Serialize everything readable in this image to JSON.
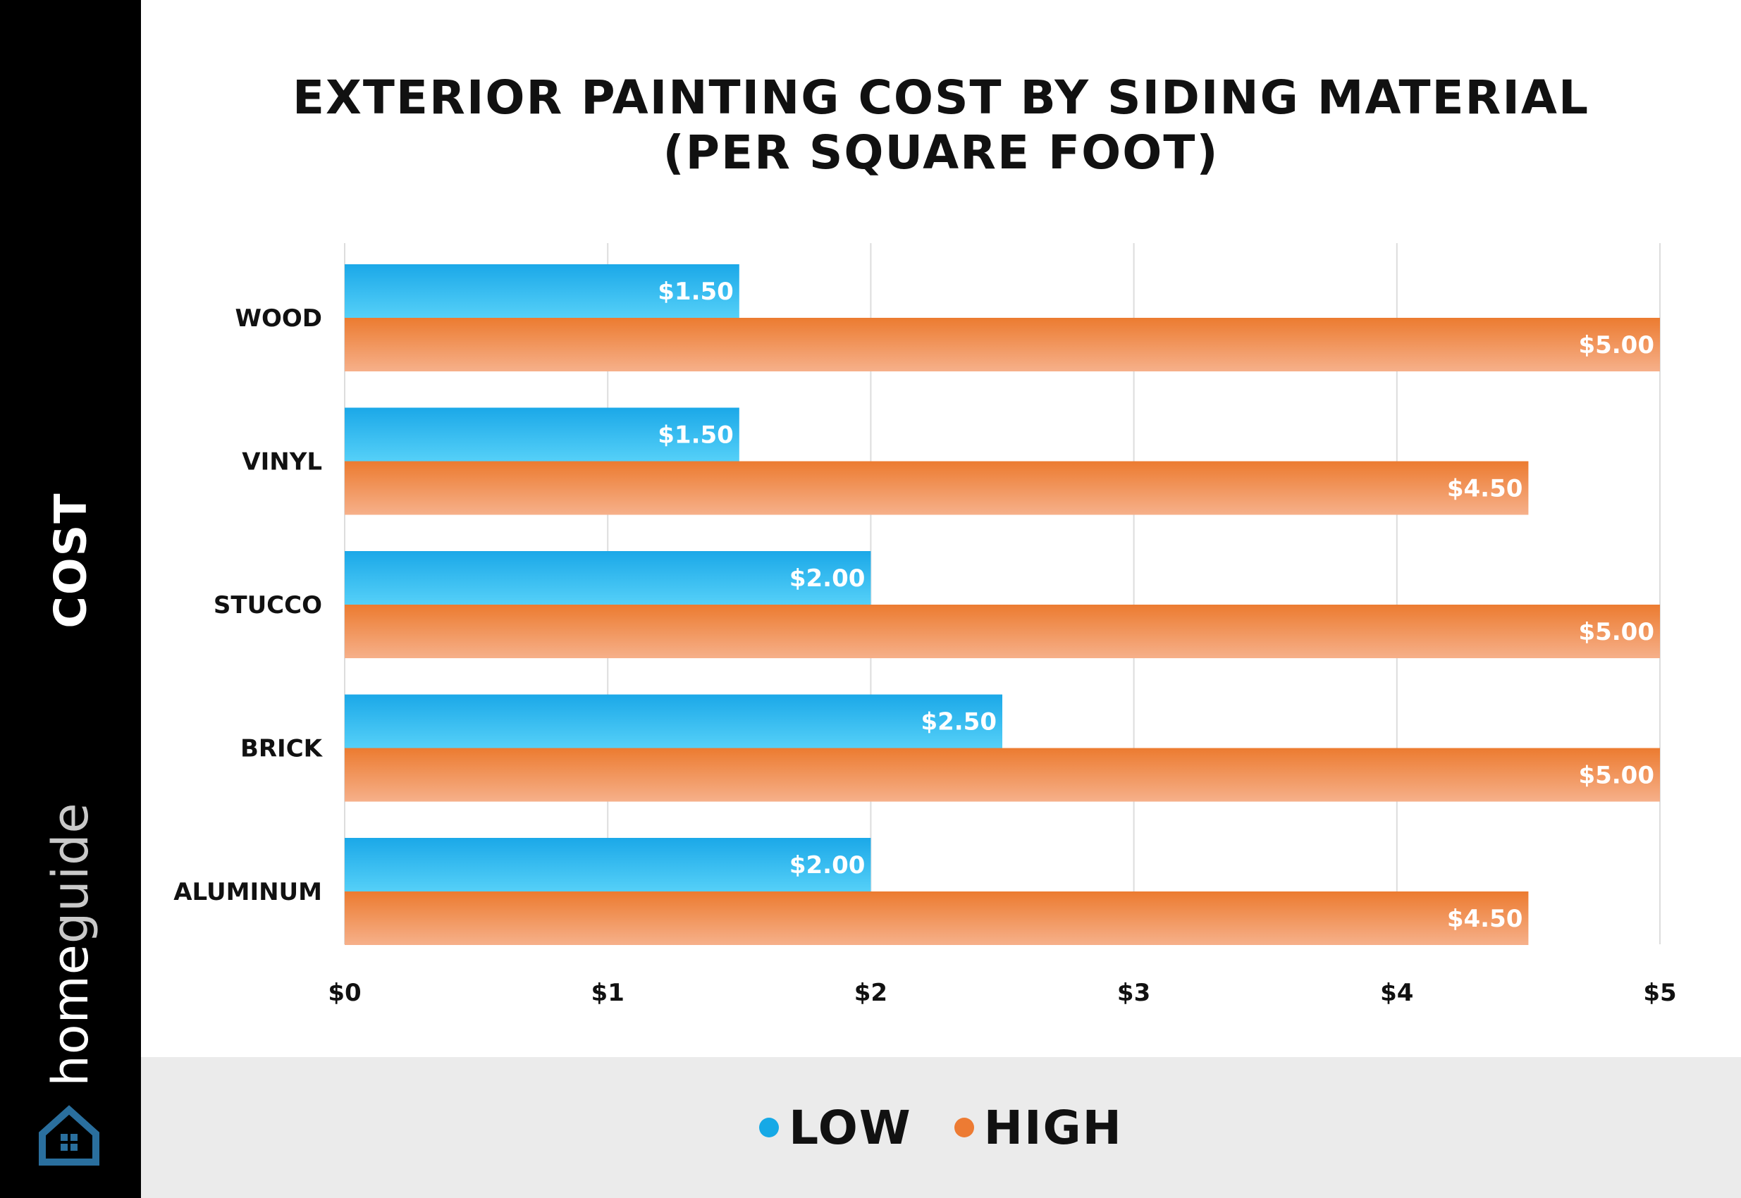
{
  "sidebar": {
    "title": "COST",
    "brand_home": "home",
    "brand_guide": "guide"
  },
  "title_lines": [
    "EXTERIOR PAINTING COST BY SIDING MATERIAL",
    "(PER SQUARE FOOT)"
  ],
  "colors": {
    "low_top": "#1ba8e8",
    "low_bottom": "#55d0f8",
    "high_top": "#ec7b30",
    "high_bottom": "#f6b08a",
    "grid": "#dddddd",
    "legend_band": "#ebebeb",
    "logo": "#2a6f9e"
  },
  "legend": [
    {
      "label": "LOW",
      "color": "#16a9e6"
    },
    {
      "label": "HIGH",
      "color": "#ed7b33"
    }
  ],
  "chart_data": {
    "type": "bar",
    "orientation": "horizontal",
    "title": "EXTERIOR PAINTING COST BY SIDING MATERIAL (PER SQUARE FOOT)",
    "ylabel": "COST",
    "categories": [
      "WOOD",
      "VINYL",
      "STUCCO",
      "BRICK",
      "ALUMINUM"
    ],
    "series": [
      {
        "name": "LOW",
        "values": [
          1.5,
          1.5,
          2.0,
          2.5,
          2.0
        ],
        "labels": [
          "$1.50",
          "$1.50",
          "$2.00",
          "$2.50",
          "$2.00"
        ]
      },
      {
        "name": "HIGH",
        "values": [
          5.0,
          4.5,
          5.0,
          5.0,
          4.5
        ],
        "labels": [
          "$5.00",
          "$4.50",
          "$5.00",
          "$5.00",
          "$4.50"
        ]
      }
    ],
    "xlim": [
      0,
      5
    ],
    "xticks": [
      "$0",
      "$1",
      "$2",
      "$3",
      "$4",
      "$5"
    ],
    "grid": true,
    "legend_position": "bottom"
  }
}
